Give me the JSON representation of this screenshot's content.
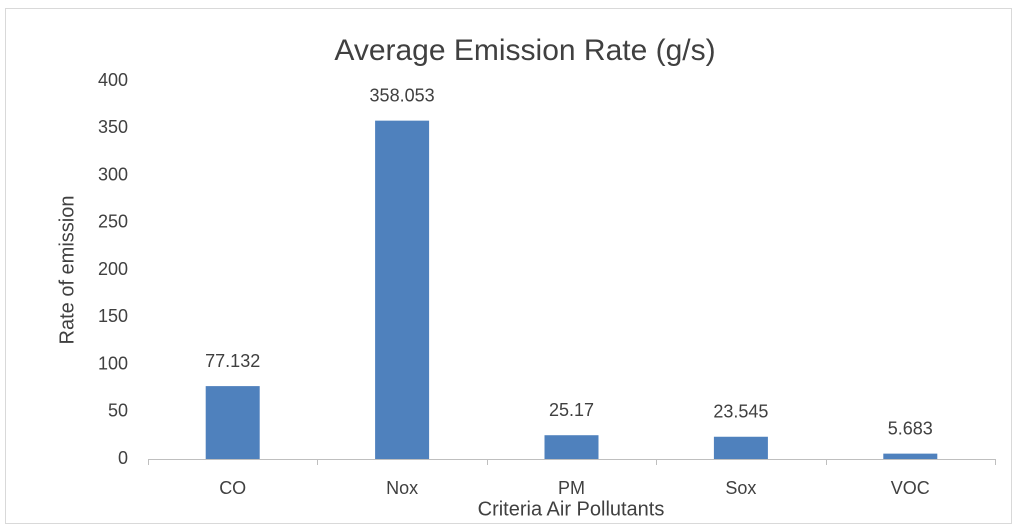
{
  "chart_data": {
    "type": "bar",
    "title": "Average Emission Rate (g/s)",
    "x_label": "Criteria Air Pollutants",
    "y_label": "Rate of emission",
    "categories": [
      "CO",
      "Nox",
      "PM",
      "Sox",
      "VOC"
    ],
    "values": [
      77.132,
      358.053,
      25.17,
      23.545,
      5.683
    ],
    "color": "#4f81bd",
    "ylim": [
      0,
      400
    ],
    "yticks": [
      0,
      50,
      100,
      150,
      200,
      250,
      300,
      350,
      400
    ],
    "grid": false,
    "data_labels": true
  }
}
